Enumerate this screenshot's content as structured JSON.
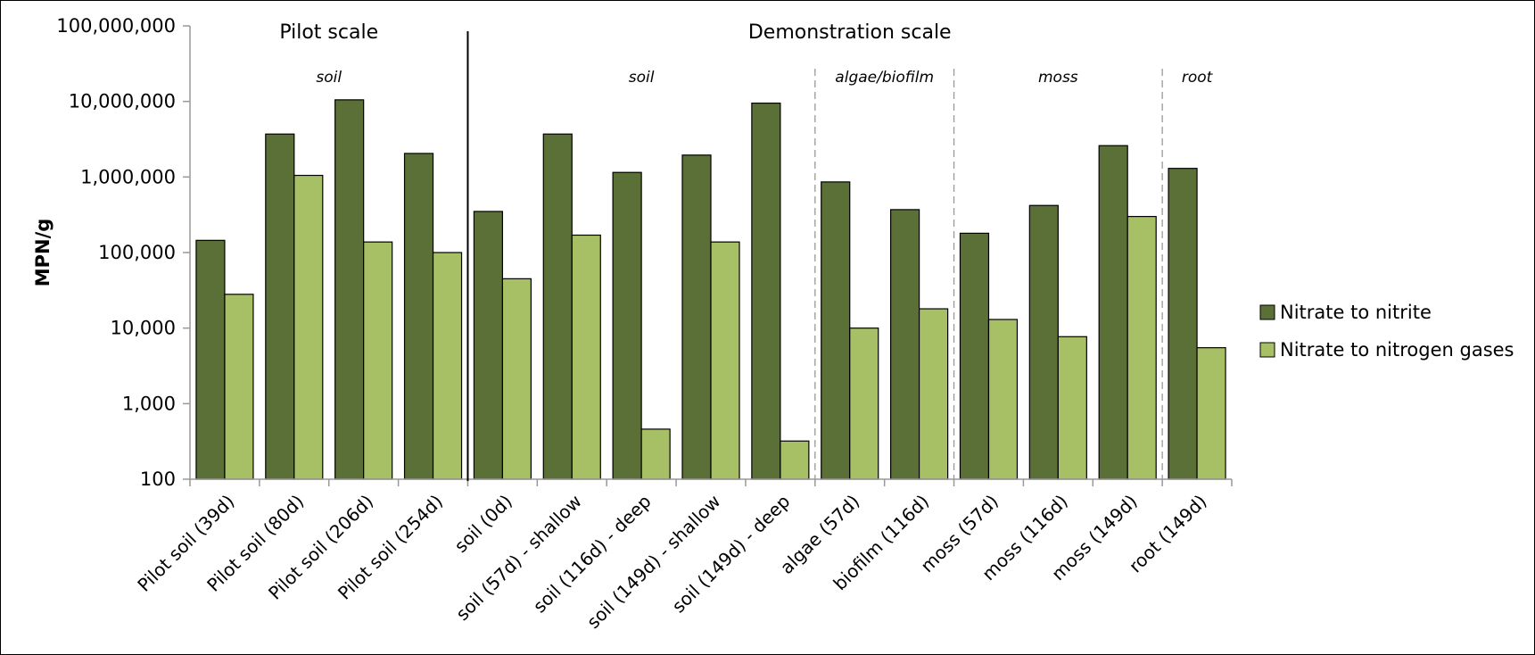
{
  "chart_data": {
    "type": "bar",
    "ylabel": "MPN/g",
    "yscale": "log",
    "ylim": [
      100,
      100000000
    ],
    "yticks": [
      "100",
      "1,000",
      "10,000",
      "100,000",
      "1,000,000",
      "10,000,000",
      "100,000,000"
    ],
    "categories": [
      "Pilot soil (39d)",
      "Pilot soil (80d)",
      "Pilot soil (206d)",
      "Pilot soil (254d)",
      "soil (0d)",
      "soil (57d) - shallow",
      "soil (116d) - deep",
      "soil (149d) - shallow",
      "soil (149d) - deep",
      "algae (57d)",
      "biofilm (116d)",
      "moss (57d)",
      "moss (116d)",
      "moss (149d)",
      "root (149d)"
    ],
    "series": [
      {
        "name": "Nitrate to nitrite",
        "color": "#5a7036",
        "values": [
          145000,
          3700000,
          10500000,
          2050000,
          350000,
          3700000,
          1150000,
          1950000,
          9500000,
          860000,
          370000,
          180000,
          420000,
          2600000,
          1300000
        ]
      },
      {
        "name": "Nitrate to nitrogen gases",
        "color": "#a8c065",
        "values": [
          28000,
          1050000,
          138000,
          100000,
          45000,
          170000,
          460,
          138000,
          320,
          10000,
          18000,
          13000,
          7700,
          300000,
          5500
        ]
      }
    ],
    "sections": [
      {
        "label": "Pilot scale",
        "start": 0,
        "end": 3
      },
      {
        "label": "Demonstration scale",
        "start": 4,
        "end": 14
      }
    ],
    "groups": [
      {
        "label": "soil",
        "start": 0,
        "end": 3
      },
      {
        "label": "soil",
        "start": 4,
        "end": 8
      },
      {
        "label": "algae/biofilm",
        "start": 9,
        "end": 10
      },
      {
        "label": "moss",
        "start": 11,
        "end": 13
      },
      {
        "label": "root",
        "start": 14,
        "end": 14
      }
    ],
    "legend_position": "right",
    "grid": false
  }
}
